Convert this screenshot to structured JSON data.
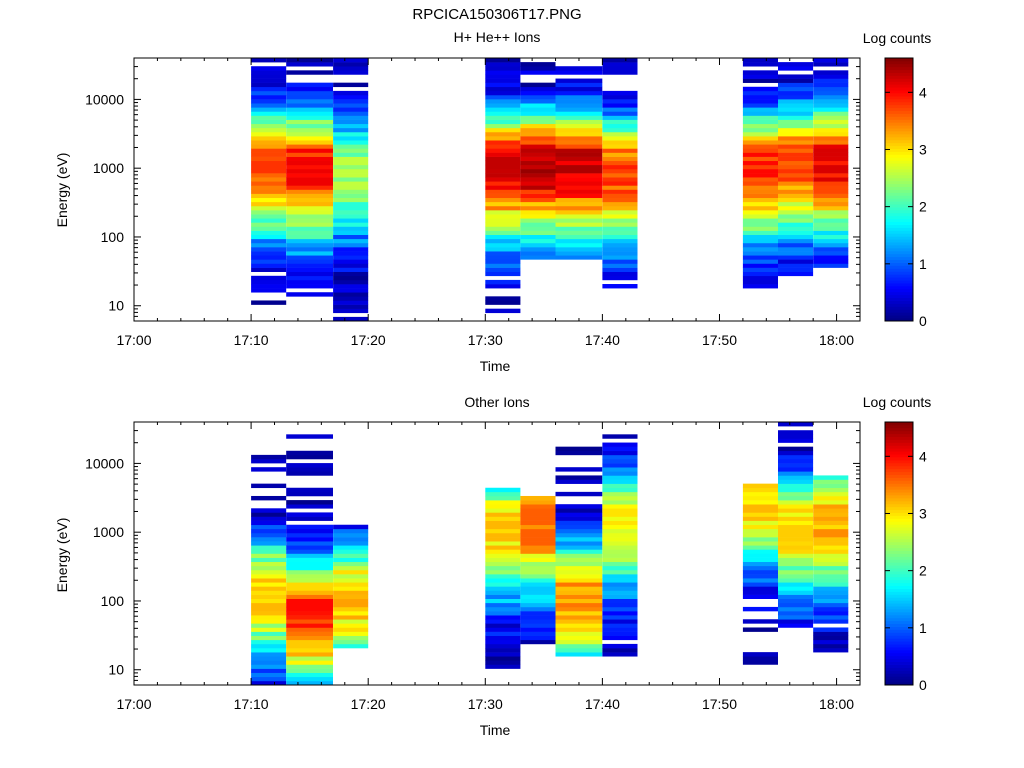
{
  "figure": {
    "title": "RPCICA150306T17.PNG"
  },
  "chart_data": [
    {
      "type": "heatmap",
      "title": "H+ He++ Ions",
      "xlabel": "Time",
      "ylabel": "Energy (eV)",
      "y_scale": "log",
      "x_range": [
        "17:00",
        "18:02"
      ],
      "ylim": [
        6,
        40000
      ],
      "x_ticks": [
        "17:00",
        "17:10",
        "17:20",
        "17:30",
        "17:40",
        "17:50",
        "18:00"
      ],
      "y_ticks": [
        "10",
        "100",
        "1000",
        "10000"
      ],
      "colorbar": {
        "label": "Log counts",
        "range": [
          0,
          4.6
        ],
        "ticks": [
          "0",
          "1",
          "2",
          "3",
          "4"
        ],
        "colormap": "jet"
      },
      "columns": [
        {
          "start": "17:10",
          "end": "17:13",
          "peak_log_counts": 3.8,
          "peak_energy_ev": 1200,
          "emin_ev": 11,
          "emax_ev": 40000
        },
        {
          "start": "17:13",
          "end": "17:17",
          "peak_log_counts": 4.1,
          "peak_energy_ev": 1100,
          "emin_ev": 11,
          "emax_ev": 40000
        },
        {
          "start": "17:17",
          "end": "17:20",
          "peak_log_counts": 2.6,
          "peak_energy_ev": 1000,
          "emin_ev": 6,
          "emax_ev": 40000
        },
        {
          "start": "17:30",
          "end": "17:33",
          "peak_log_counts": 4.3,
          "peak_energy_ev": 1100,
          "emin_ev": 6,
          "emax_ev": 40000
        },
        {
          "start": "17:33",
          "end": "17:36",
          "peak_log_counts": 4.5,
          "peak_energy_ev": 1200,
          "emin_ev": 50,
          "emax_ev": 35000
        },
        {
          "start": "17:36",
          "end": "17:40",
          "peak_log_counts": 4.4,
          "peak_energy_ev": 1200,
          "emin_ev": 50,
          "emax_ev": 30000
        },
        {
          "start": "17:40",
          "end": "17:43",
          "peak_log_counts": 3.9,
          "peak_energy_ev": 900,
          "emin_ev": 17,
          "emax_ev": 40000
        },
        {
          "start": "17:52",
          "end": "17:55",
          "peak_log_counts": 4.0,
          "peak_energy_ev": 1100,
          "emin_ev": 17,
          "emax_ev": 40000
        },
        {
          "start": "17:55",
          "end": "17:58",
          "peak_log_counts": 3.8,
          "peak_energy_ev": 1300,
          "emin_ev": 28,
          "emax_ev": 40000
        },
        {
          "start": "17:58",
          "end": "18:01",
          "peak_log_counts": 4.2,
          "peak_energy_ev": 1300,
          "emin_ev": 38,
          "emax_ev": 40000
        }
      ]
    },
    {
      "type": "heatmap",
      "title": "Other Ions",
      "xlabel": "Time",
      "ylabel": "Energy (eV)",
      "y_scale": "log",
      "x_range": [
        "17:00",
        "18:02"
      ],
      "ylim": [
        6,
        40000
      ],
      "x_ticks": [
        "17:00",
        "17:10",
        "17:20",
        "17:30",
        "17:40",
        "17:50",
        "18:00"
      ],
      "y_ticks": [
        "10",
        "100",
        "1000",
        "10000"
      ],
      "colorbar": {
        "label": "Log counts",
        "range": [
          0,
          4.6
        ],
        "ticks": [
          "0",
          "1",
          "2",
          "3",
          "4"
        ],
        "colormap": "jet"
      },
      "columns": [
        {
          "start": "17:10",
          "end": "17:13",
          "peak_log_counts": 3.2,
          "peak_energy_ev": 150,
          "emin_ev": 6,
          "emax_ev": 14000
        },
        {
          "start": "17:13",
          "end": "17:17",
          "peak_log_counts": 4.0,
          "peak_energy_ev": 70,
          "emin_ev": 6,
          "emax_ev": 31000
        },
        {
          "start": "17:17",
          "end": "17:20",
          "peak_log_counts": 3.3,
          "peak_energy_ev": 120,
          "emin_ev": 21,
          "emax_ev": 1300
        },
        {
          "start": "17:30",
          "end": "17:33",
          "peak_log_counts": 3.2,
          "peak_energy_ev": 1200,
          "emin_ev": 11,
          "emax_ev": 4200
        },
        {
          "start": "17:33",
          "end": "17:36",
          "peak_log_counts": 3.6,
          "peak_energy_ev": 1400,
          "emin_ev": 22,
          "emax_ev": 3300
        },
        {
          "start": "17:36",
          "end": "17:40",
          "peak_log_counts": 3.5,
          "peak_energy_ev": 130,
          "emin_ev": 16,
          "emax_ev": 17000
        },
        {
          "start": "17:40",
          "end": "17:43",
          "peak_log_counts": 3.0,
          "peak_energy_ev": 1500,
          "emin_ev": 16,
          "emax_ev": 29000
        },
        {
          "start": "17:52",
          "end": "17:55",
          "peak_log_counts": 3.2,
          "peak_energy_ev": 3500,
          "emin_ev": 11,
          "emax_ev": 5200
        },
        {
          "start": "17:55",
          "end": "17:58",
          "peak_log_counts": 3.1,
          "peak_energy_ev": 1200,
          "emin_ev": 35,
          "emax_ev": 38000
        },
        {
          "start": "17:58",
          "end": "18:01",
          "peak_log_counts": 3.4,
          "peak_energy_ev": 1500,
          "emin_ev": 17,
          "emax_ev": 7000
        }
      ]
    }
  ]
}
